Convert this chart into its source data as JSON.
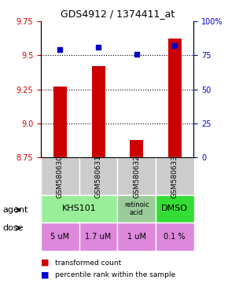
{
  "title": "GDS4912 / 1374411_at",
  "samples": [
    "GSM580630",
    "GSM580631",
    "GSM580632",
    "GSM580633"
  ],
  "bar_values": [
    9.27,
    9.42,
    8.88,
    9.62
  ],
  "dot_values": [
    79,
    81,
    76,
    82
  ],
  "ylim_left": [
    8.75,
    9.75
  ],
  "ylim_right": [
    0,
    100
  ],
  "yticks_left": [
    8.75,
    9.0,
    9.25,
    9.5,
    9.75
  ],
  "yticks_right": [
    0,
    25,
    50,
    75,
    100
  ],
  "ytick_labels_right": [
    "0",
    "25",
    "50",
    "75",
    "100%"
  ],
  "bar_color": "#cc0000",
  "dot_color": "#0000cc",
  "agent_labels": [
    "KHS101",
    "KHS101",
    "retinoic\nacid",
    "DMSO"
  ],
  "agent_colors": [
    "#99ee99",
    "#99ee99",
    "#99cc99",
    "#33dd33"
  ],
  "dose_labels": [
    "5 uM",
    "1.7 uM",
    "1 uM",
    "0.1 %"
  ],
  "dose_color": "#dd88dd",
  "sample_bg_color": "#cccccc",
  "legend_bar_label": "transformed count",
  "legend_dot_label": "percentile rank within the sample",
  "agent_row_label": "agent",
  "dose_row_label": "dose"
}
